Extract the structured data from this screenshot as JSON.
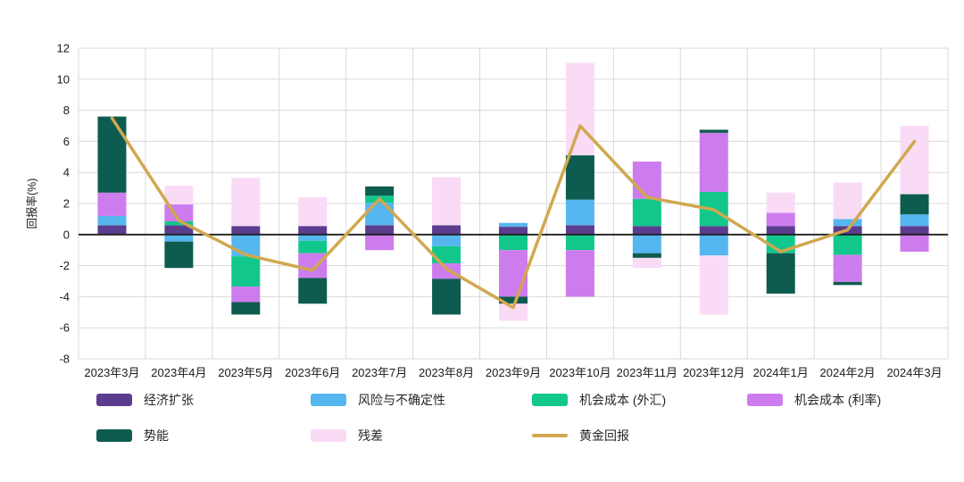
{
  "chart_data": {
    "type": "bar",
    "subtype": "stacked-bar-with-line",
    "categories": [
      "2023年3月",
      "2023年4月",
      "2023年5月",
      "2023年6月",
      "2023年7月",
      "2023年8月",
      "2023年9月",
      "2023年10月",
      "2023年11月",
      "2023年12月",
      "2024年1月",
      "2024年2月",
      "2024年3月"
    ],
    "series": [
      {
        "name": "经济扩张",
        "type": "bar",
        "color": "#5b3d8f",
        "values": [
          0.6,
          0.6,
          0.55,
          0.55,
          0.6,
          0.6,
          0.5,
          0.6,
          0.55,
          0.55,
          0.55,
          0.55,
          0.55
        ]
      },
      {
        "name": "风险与不确定性",
        "type": "bar",
        "color": "#56b6ef",
        "values": [
          0.6,
          -0.45,
          -1.4,
          -0.4,
          1.45,
          -0.75,
          0.25,
          1.65,
          -1.2,
          -1.35,
          0,
          0.45,
          0.75
        ]
      },
      {
        "name": "机会成本 (外汇)",
        "type": "bar",
        "color": "#12c78c",
        "values": [
          0,
          0.25,
          -1.95,
          -0.8,
          0.45,
          -1.1,
          -1.0,
          -1.0,
          1.75,
          2.2,
          -1.2,
          -1.3,
          0
        ]
      },
      {
        "name": "机会成本 (利率)",
        "type": "bar",
        "color": "#cd7cee",
        "values": [
          1.5,
          1.1,
          -1.0,
          -1.6,
          -1.0,
          -1.0,
          -3.0,
          -3.0,
          2.4,
          3.8,
          0.85,
          -1.75,
          -1.1
        ]
      },
      {
        "name": "势能",
        "type": "bar",
        "color": "#0e5c4f",
        "values": [
          4.9,
          -1.7,
          -0.8,
          -1.65,
          0.6,
          -2.3,
          -0.45,
          2.85,
          -0.3,
          0.2,
          -2.6,
          -0.2,
          1.3
        ]
      },
      {
        "name": "残差",
        "type": "bar",
        "color": "#fadbf6",
        "values": [
          0,
          1.2,
          3.1,
          1.85,
          0,
          3.1,
          -1.1,
          5.95,
          -0.65,
          -3.8,
          1.3,
          2.35,
          4.4
        ]
      },
      {
        "name": "黄金回报",
        "type": "line",
        "color": "#d0a84f",
        "values": [
          7.5,
          0.9,
          -1.3,
          -2.3,
          2.3,
          -2.2,
          -4.7,
          7.0,
          2.4,
          1.6,
          -1.1,
          0.3,
          6.0
        ]
      }
    ],
    "title": "",
    "xlabel": "",
    "ylabel": "回报率(%)",
    "ylim": [
      -8,
      12
    ],
    "y_ticks": [
      12,
      10,
      8,
      6,
      4,
      2,
      0,
      -2,
      -4,
      -6,
      -8
    ],
    "grid": true,
    "legend_position": "bottom",
    "colors": {
      "grid": "#d9d9d9",
      "zero_axis": "#1f1f1f",
      "tick_text": "#1a1a1a"
    }
  }
}
